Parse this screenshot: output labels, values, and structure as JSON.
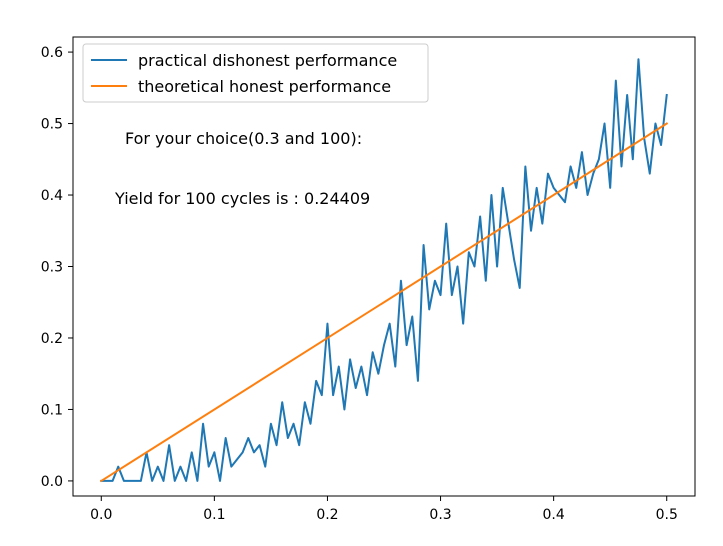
{
  "chart_data": {
    "type": "line",
    "xlim": [
      -0.025,
      0.525
    ],
    "ylim": [
      -0.0211,
      0.6211
    ],
    "xticks": [
      "0.0",
      "0.1",
      "0.2",
      "0.3",
      "0.4",
      "0.5"
    ],
    "yticks": [
      "0.0",
      "0.1",
      "0.2",
      "0.3",
      "0.4",
      "0.5",
      "0.6"
    ],
    "legend_position": "upper-left",
    "grid": false,
    "annotations": [
      "For your choice(0.3 and 100):",
      "Yield for 100 cycles is : 0.24409"
    ],
    "series": [
      {
        "name": "practical dishonest performance",
        "color": "#1f77b4",
        "x": [
          0,
          0.01,
          0.015,
          0.02,
          0.03,
          0.035,
          0.04,
          0.045,
          0.05,
          0.055,
          0.06,
          0.065,
          0.07,
          0.075,
          0.08,
          0.085,
          0.09,
          0.095,
          0.1,
          0.105,
          0.11,
          0.115,
          0.12,
          0.125,
          0.13,
          0.135,
          0.14,
          0.145,
          0.15,
          0.155,
          0.16,
          0.165,
          0.17,
          0.175,
          0.18,
          0.185,
          0.19,
          0.195,
          0.2,
          0.205,
          0.21,
          0.215,
          0.22,
          0.225,
          0.23,
          0.235,
          0.24,
          0.245,
          0.25,
          0.255,
          0.26,
          0.265,
          0.27,
          0.275,
          0.28,
          0.285,
          0.29,
          0.295,
          0.3,
          0.305,
          0.31,
          0.315,
          0.32,
          0.325,
          0.33,
          0.335,
          0.34,
          0.345,
          0.35,
          0.355,
          0.36,
          0.365,
          0.37,
          0.375,
          0.38,
          0.385,
          0.39,
          0.395,
          0.4,
          0.405,
          0.41,
          0.415,
          0.42,
          0.425,
          0.43,
          0.435,
          0.44,
          0.445,
          0.45,
          0.455,
          0.46,
          0.465,
          0.47,
          0.475,
          0.48,
          0.485,
          0.49,
          0.495,
          0.5
        ],
        "values": [
          0,
          0,
          0.02,
          0,
          0,
          0,
          0.04,
          0,
          0.02,
          0,
          0.05,
          0,
          0.02,
          0,
          0.04,
          0,
          0.08,
          0.02,
          0.04,
          0,
          0.06,
          0.02,
          0.03,
          0.04,
          0.06,
          0.04,
          0.05,
          0.02,
          0.08,
          0.05,
          0.11,
          0.06,
          0.08,
          0.05,
          0.11,
          0.08,
          0.14,
          0.12,
          0.22,
          0.12,
          0.16,
          0.1,
          0.17,
          0.13,
          0.16,
          0.12,
          0.18,
          0.15,
          0.19,
          0.22,
          0.16,
          0.28,
          0.19,
          0.23,
          0.14,
          0.33,
          0.24,
          0.28,
          0.26,
          0.36,
          0.26,
          0.3,
          0.22,
          0.32,
          0.3,
          0.37,
          0.28,
          0.4,
          0.3,
          0.41,
          0.36,
          0.31,
          0.27,
          0.44,
          0.35,
          0.41,
          0.36,
          0.43,
          0.41,
          0.4,
          0.39,
          0.44,
          0.41,
          0.46,
          0.4,
          0.43,
          0.45,
          0.5,
          0.41,
          0.56,
          0.44,
          0.54,
          0.45,
          0.59,
          0.48,
          0.43,
          0.5,
          0.47,
          0.54
        ]
      },
      {
        "name": "theoretical honest performance",
        "color": "#ff7f0e",
        "x": [
          0,
          0.5
        ],
        "values": [
          0,
          0.5
        ]
      }
    ]
  }
}
